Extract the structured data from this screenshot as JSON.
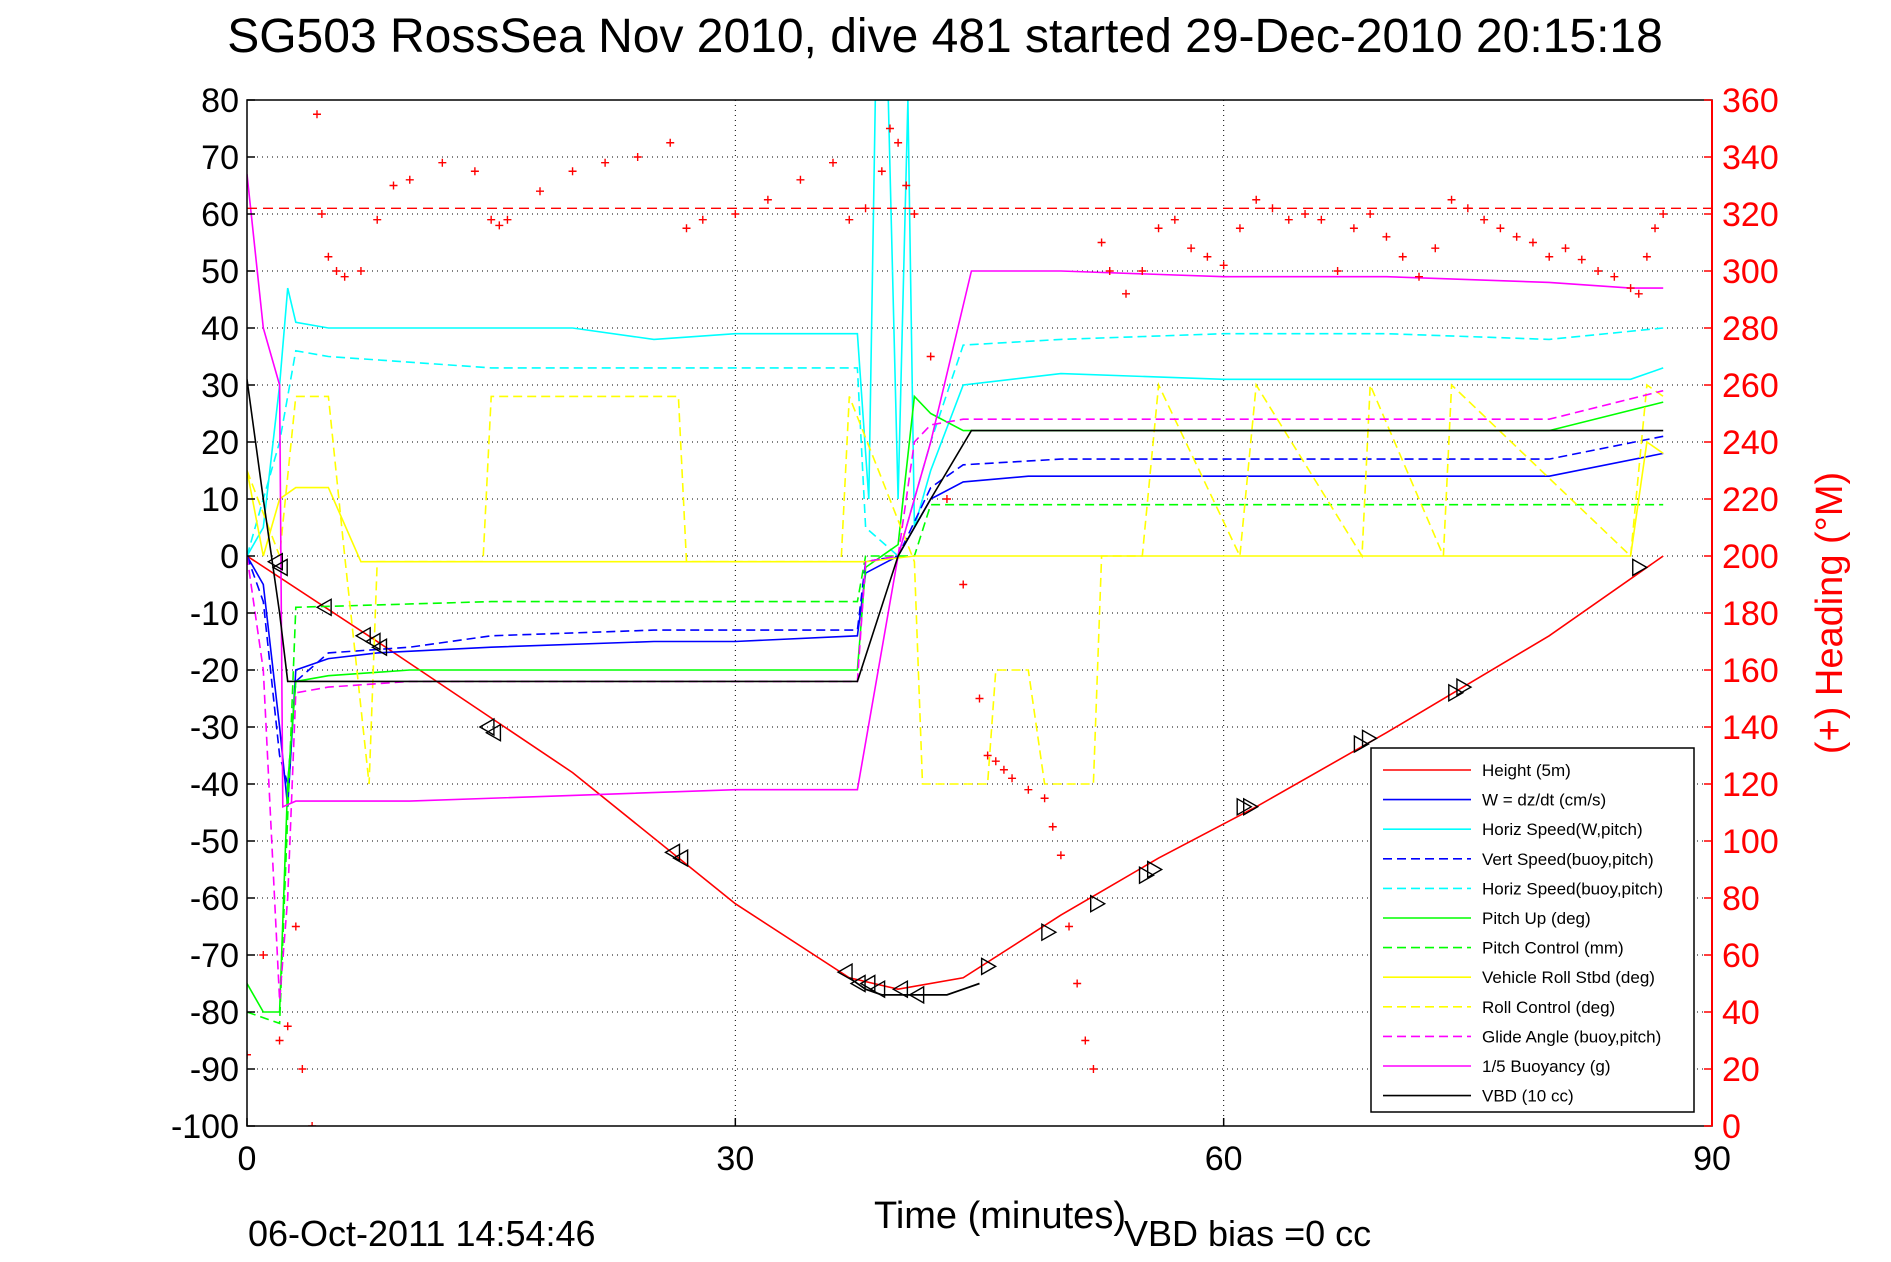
{
  "colors": {
    "red": "#ff0000",
    "blue": "#0000ff",
    "cyan": "#00ffff",
    "green": "#00ff00",
    "yellow": "#ffff00",
    "magenta": "#ff00ff",
    "black": "#000000"
  },
  "chart_data": {
    "type": "line",
    "title": "SG503 RossSea Nov 2010, dive 481 started 29-Dec-2010 20:15:18",
    "xlabel": "Time (minutes)",
    "ylabel": "",
    "y2label": "(+) Heading (°M)",
    "xlim": [
      0,
      90
    ],
    "ylim": [
      -100,
      80
    ],
    "y2lim": [
      0,
      360
    ],
    "x_ticks": [
      "0",
      "30",
      "60",
      "90"
    ],
    "y_ticks": [
      "80",
      "70",
      "60",
      "50",
      "40",
      "30",
      "20",
      "10",
      "0",
      "-10",
      "-20",
      "-30",
      "-40",
      "-50",
      "-60",
      "-70",
      "-80",
      "-90",
      "-100"
    ],
    "y2_ticks": [
      "360",
      "340",
      "320",
      "300",
      "280",
      "260",
      "240",
      "220",
      "200",
      "180",
      "160",
      "140",
      "120",
      "100",
      "80",
      "60",
      "40",
      "20",
      "0"
    ],
    "grid": true,
    "legend_position": "bottom-right",
    "footer_date": "06-Oct-2011 14:54:46",
    "footer_vbd": "VBD bias =0 cc",
    "heading_reference": 322,
    "series": [
      {
        "name": "Height (5m)",
        "color": "#ff0000",
        "dash": false,
        "x": [
          0,
          8,
          20,
          30,
          37,
          40,
          44,
          50,
          56,
          62,
          70,
          80,
          87
        ],
        "y": [
          0,
          -15,
          -38,
          -61,
          -74,
          -76,
          -74,
          -63,
          -53,
          -44,
          -31,
          -14,
          0
        ]
      },
      {
        "name": "W = dz/dt (cm/s)",
        "color": "#0000ff",
        "dash": false,
        "x": [
          0,
          1,
          2,
          2.5,
          3,
          5,
          8,
          15,
          25,
          30,
          37.5,
          38,
          40,
          42,
          44,
          48,
          55,
          60,
          70,
          80,
          87
        ],
        "y": [
          0,
          -5,
          -30,
          -44,
          -20,
          -18,
          -17,
          -16,
          -15,
          -15,
          -14,
          -3,
          0,
          10,
          13,
          14,
          14,
          14,
          14,
          14,
          18
        ]
      },
      {
        "name": "Horiz Speed(W,pitch)",
        "color": "#00ffff",
        "dash": false,
        "x": [
          0,
          1,
          2,
          2.5,
          3,
          5,
          10,
          20,
          25,
          30,
          37.5,
          38.2,
          38.6,
          39.4,
          40,
          40.6,
          41,
          42,
          44,
          50,
          60,
          70,
          80,
          85,
          87
        ],
        "y": [
          0,
          5,
          30,
          47,
          41,
          40,
          40,
          40,
          38,
          39,
          39,
          10,
          80,
          80,
          10,
          80,
          5,
          15,
          30,
          32,
          31,
          31,
          31,
          31,
          33
        ]
      },
      {
        "name": "Vert Speed(buoy,pitch)",
        "color": "#0000ff",
        "dash": true,
        "x": [
          0,
          1,
          2,
          2.5,
          3,
          5,
          10,
          15,
          25,
          30,
          37.5,
          38,
          40,
          42,
          44,
          50,
          60,
          70,
          80,
          87
        ],
        "y": [
          0,
          -8,
          -35,
          -40,
          -22,
          -17,
          -16,
          -14,
          -13,
          -13,
          -13,
          -1,
          0,
          12,
          16,
          17,
          17,
          17,
          17,
          21
        ]
      },
      {
        "name": "Horiz Speed(buoy,pitch)",
        "color": "#00ffff",
        "dash": true,
        "x": [
          0,
          2,
          3,
          5,
          10,
          15,
          25,
          30,
          37.5,
          38,
          40,
          42,
          44,
          50,
          60,
          70,
          80,
          87
        ],
        "y": [
          0,
          20,
          36,
          35,
          34,
          33,
          33,
          33,
          33,
          5,
          0,
          20,
          37,
          38,
          39,
          39,
          38,
          40
        ]
      },
      {
        "name": "Pitch Up (deg)",
        "color": "#00ff00",
        "dash": false,
        "x": [
          0,
          1,
          2,
          2.5,
          3,
          5,
          10,
          20,
          30,
          37.5,
          38,
          40,
          41,
          42,
          44,
          50,
          60,
          70,
          80,
          87
        ],
        "y": [
          -75,
          -80,
          -80,
          -40,
          -22,
          -21,
          -20,
          -20,
          -20,
          -20,
          -2,
          2,
          28,
          25,
          22,
          22,
          22,
          22,
          22,
          27
        ]
      },
      {
        "name": "Pitch Control (mm)",
        "color": "#00ff00",
        "dash": true,
        "x": [
          0,
          2,
          3,
          15,
          30,
          37.5,
          38,
          41,
          42,
          87
        ],
        "y": [
          -80,
          -82,
          -9,
          -8,
          -8,
          -8,
          0,
          0,
          9,
          9
        ]
      },
      {
        "name": "Vehicle Roll Stbd (deg)",
        "color": "#ffff00",
        "dash": false,
        "x": [
          0,
          1,
          2,
          3,
          5,
          7,
          15,
          30,
          37,
          38,
          41,
          45,
          48,
          52,
          55,
          60,
          70,
          80,
          85,
          86,
          87
        ],
        "y": [
          15,
          0,
          10,
          12,
          12,
          -1,
          -1,
          -1,
          -1,
          -1,
          0,
          0,
          0,
          0,
          0,
          0,
          0,
          0,
          0,
          20,
          18
        ]
      },
      {
        "name": "Roll Control (deg)",
        "color": "#ffff00",
        "dash": true,
        "x": [
          0,
          2,
          3,
          5,
          6,
          7.5,
          8,
          14.5,
          15,
          26.5,
          27,
          36.5,
          37,
          41,
          41.5,
          45.5,
          46,
          48,
          49,
          52,
          52.5,
          55,
          56,
          61,
          62,
          68.5,
          69,
          73.5,
          74,
          85,
          86,
          87
        ],
        "y": [
          15,
          0,
          28,
          28,
          0,
          -40,
          -1,
          -1,
          28,
          28,
          -1,
          -1,
          28,
          -1,
          -40,
          -40,
          -20,
          -20,
          -40,
          -40,
          0,
          0,
          30,
          0,
          30,
          0,
          30,
          0,
          30,
          0,
          30,
          28
        ]
      },
      {
        "name": "Glide Angle (buoy,pitch)",
        "color": "#ff00ff",
        "dash": true,
        "x": [
          0,
          1,
          2,
          2.5,
          3,
          5,
          10,
          20,
          30,
          37.5,
          38,
          40,
          41,
          42,
          44,
          50,
          60,
          70,
          80,
          87
        ],
        "y": [
          0,
          -20,
          -78,
          -60,
          -24,
          -23,
          -22,
          -22,
          -22,
          -22,
          -1,
          0,
          20,
          23,
          24,
          24,
          24,
          24,
          24,
          29
        ]
      },
      {
        "name": "1/5 Buoyancy (g)",
        "color": "#ff00ff",
        "dash": false,
        "x": [
          0,
          1,
          2,
          2.2,
          3,
          10,
          20,
          30,
          37.5,
          40,
          42,
          44.5,
          50,
          60,
          70,
          80,
          85,
          87
        ],
        "y": [
          67,
          40,
          30,
          -44,
          -43,
          -43,
          -42,
          -41,
          -41,
          0,
          20,
          50,
          50,
          49,
          49,
          48,
          47,
          47
        ]
      },
      {
        "name": "VBD (10 cc)",
        "color": "#000000",
        "dash": false,
        "x": [
          0,
          1,
          2,
          2.5,
          3,
          10,
          20,
          30,
          37.5,
          40,
          42,
          44.5,
          50,
          60,
          70,
          80,
          87
        ],
        "y": [
          31,
          10,
          -10,
          -22,
          -22,
          -22,
          -22,
          -22,
          -22,
          0,
          10,
          22,
          22,
          22,
          22,
          22,
          22
        ]
      }
    ],
    "heading_points": {
      "x": [
        0,
        1,
        2,
        2.5,
        3,
        3.4,
        4,
        4.3,
        4.6,
        5,
        5.5,
        6,
        7,
        8,
        9,
        10,
        12,
        14,
        15,
        15.5,
        16,
        18,
        20,
        22,
        24,
        26,
        27,
        28,
        30,
        32,
        34,
        36,
        37,
        38,
        39,
        39.5,
        40,
        40.5,
        41,
        42,
        43,
        44,
        45,
        45.5,
        46,
        46.5,
        47,
        48,
        49,
        49.5,
        50,
        50.5,
        51,
        51.5,
        52,
        52.5,
        53,
        54,
        55,
        56,
        57,
        58,
        59,
        60,
        61,
        62,
        63,
        64,
        65,
        66,
        67,
        68,
        69,
        70,
        71,
        72,
        73,
        74,
        75,
        76,
        77,
        78,
        79,
        80,
        81,
        82,
        83,
        84,
        85,
        85.5,
        86,
        86.5,
        87
      ],
      "y": [
        25,
        60,
        30,
        35,
        70,
        20,
        0,
        355,
        320,
        305,
        300,
        298,
        300,
        318,
        330,
        332,
        338,
        335,
        318,
        316,
        318,
        328,
        335,
        338,
        340,
        345,
        315,
        318,
        320,
        325,
        332,
        338,
        318,
        322,
        335,
        350,
        345,
        330,
        320,
        270,
        220,
        190,
        150,
        130,
        128,
        125,
        122,
        118,
        115,
        105,
        95,
        70,
        50,
        30,
        20,
        310,
        300,
        292,
        300,
        315,
        318,
        308,
        305,
        302,
        315,
        325,
        322,
        318,
        320,
        318,
        300,
        315,
        320,
        312,
        305,
        298,
        308,
        325,
        322,
        318,
        315,
        312,
        310,
        305,
        308,
        304,
        300,
        298,
        294,
        292,
        305,
        315,
        320
      ]
    },
    "markers": {
      "x": [
        1.8,
        2.1,
        4.8,
        7.2,
        7.8,
        8.2,
        14.8,
        15.2,
        26.2,
        26.7,
        36.8,
        37.6,
        38.2,
        38.8,
        40.2,
        41.2,
        45.5,
        49.2,
        52.2,
        55.2,
        55.7,
        61.2,
        61.6,
        68.4,
        68.9,
        74.2,
        74.7,
        85.5
      ],
      "y": [
        -1,
        -2,
        -9,
        -14,
        -15,
        -16,
        -30,
        -31,
        -52,
        -53,
        -73,
        -75,
        -75,
        -76,
        -76,
        -77,
        -72,
        -66,
        -61,
        -56,
        -55,
        -44,
        -44,
        -33,
        -32,
        -24,
        -23,
        -2
      ]
    },
    "vbd_turn": {
      "x": [
        37,
        38,
        39,
        40,
        41,
        42,
        43,
        44,
        45
      ],
      "y": [
        -74,
        -76,
        -77,
        -77,
        -77,
        -77,
        -77,
        -76,
        -75
      ]
    }
  }
}
